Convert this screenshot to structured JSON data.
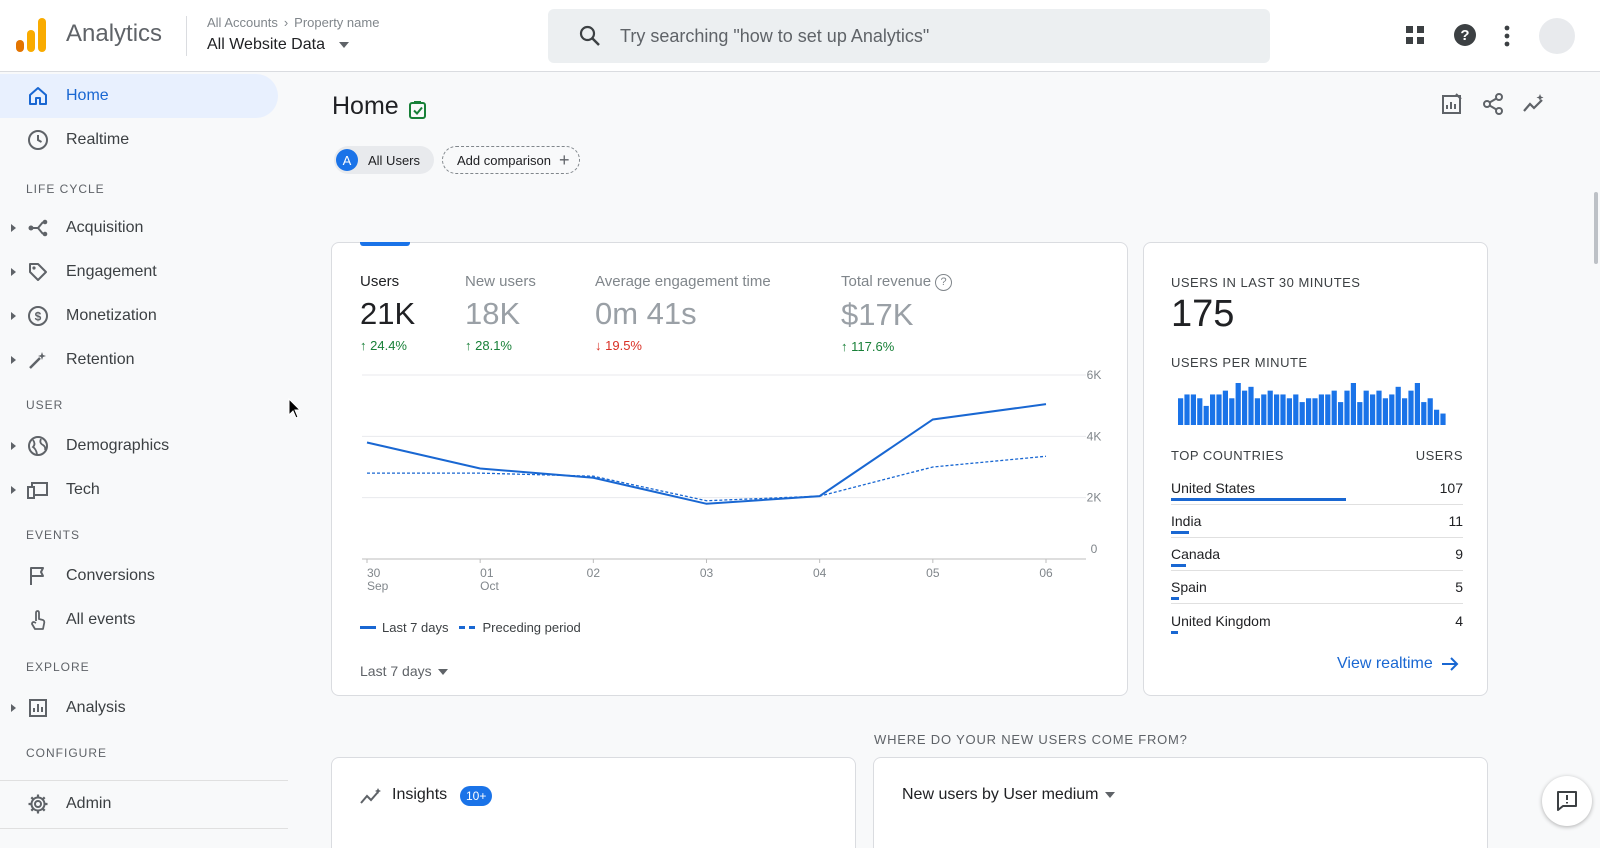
{
  "header": {
    "app_title": "Analytics",
    "breadcrumb": [
      "All Accounts",
      "Property name"
    ],
    "property": "All Website Data",
    "search_placeholder": "Try searching \"how to set up Analytics\""
  },
  "sidebar": {
    "items": [
      {
        "label": "Home",
        "icon": "home-icon",
        "active": true
      },
      {
        "label": "Realtime",
        "icon": "clock-icon"
      }
    ],
    "sections": [
      {
        "title": "LIFE CYCLE",
        "items": [
          "Acquisition",
          "Engagement",
          "Monetization",
          "Retention"
        ]
      },
      {
        "title": "USER",
        "items": [
          "Demographics",
          "Tech"
        ]
      },
      {
        "title": "EVENTS",
        "items": [
          "Conversions",
          "All events"
        ]
      },
      {
        "title": "EXPLORE",
        "items": [
          "Analysis"
        ]
      },
      {
        "title": "CONFIGURE",
        "items": [
          "Admin"
        ]
      }
    ]
  },
  "page": {
    "title": "Home",
    "comparison_chip": "All Users",
    "comparison_badge": "A",
    "add_comparison": "Add comparison"
  },
  "metrics": [
    {
      "label": "Users",
      "value": "21K",
      "delta": "24.4%",
      "direction": "up",
      "active": true
    },
    {
      "label": "New users",
      "value": "18K",
      "delta": "28.1%",
      "direction": "up"
    },
    {
      "label": "Average engagement time",
      "value": "0m 41s",
      "delta": "19.5%",
      "direction": "down"
    },
    {
      "label": "Total revenue",
      "value": "$17K",
      "delta": "117.6%",
      "direction": "up"
    }
  ],
  "chart_data": {
    "type": "line",
    "x": [
      "30 Sep",
      "01 Oct",
      "02",
      "03",
      "04",
      "05",
      "06"
    ],
    "x_tick_labels": [
      [
        "30",
        "Sep"
      ],
      [
        "01",
        "Oct"
      ],
      [
        "02",
        ""
      ],
      [
        "03",
        ""
      ],
      [
        "04",
        ""
      ],
      [
        "05",
        ""
      ],
      [
        "06",
        ""
      ]
    ],
    "y_ticks": [
      "6K",
      "4K",
      "2K",
      "0"
    ],
    "ylim": [
      0,
      6000
    ],
    "series": [
      {
        "name": "Last 7 days",
        "style": "solid",
        "values": [
          3800,
          2950,
          2650,
          1800,
          2050,
          4550,
          5050
        ]
      },
      {
        "name": "Preceding period",
        "style": "dashed",
        "values": [
          2800,
          2800,
          2700,
          1900,
          2050,
          3000,
          3350
        ]
      }
    ],
    "grid": true,
    "legend_position": "bottom-left"
  },
  "date_range": "Last 7 days",
  "realtime": {
    "heading": "USERS IN LAST 30 MINUTES",
    "value": "175",
    "per_minute_heading": "USERS PER MINUTE",
    "per_minute_values": [
      7,
      8,
      8,
      7,
      5,
      8,
      8,
      9,
      7,
      11,
      9,
      10,
      7,
      8,
      9,
      8,
      8,
      7,
      8,
      6,
      7,
      7,
      8,
      8,
      9,
      6,
      9,
      11,
      6,
      9,
      8,
      9,
      7,
      8,
      10,
      7,
      9,
      11,
      6,
      7,
      4,
      3
    ],
    "table_headers": [
      "TOP COUNTRIES",
      "USERS"
    ],
    "countries": [
      {
        "name": "United States",
        "users": 107
      },
      {
        "name": "India",
        "users": 11
      },
      {
        "name": "Canada",
        "users": 9
      },
      {
        "name": "Spain",
        "users": 5
      },
      {
        "name": "United Kingdom",
        "users": 4
      }
    ],
    "view_link": "View realtime"
  },
  "where_heading": "WHERE DO YOUR NEW USERS COME FROM?",
  "insights": {
    "title": "Insights",
    "badge": "10+"
  },
  "new_users_card": {
    "title": "New users by User medium"
  },
  "colors": {
    "accent": "#1a73e8",
    "line": "#1967d2",
    "up": "#188038",
    "down": "#d93025",
    "logo_orange": "#f9ab00",
    "logo_dark": "#e37400"
  }
}
